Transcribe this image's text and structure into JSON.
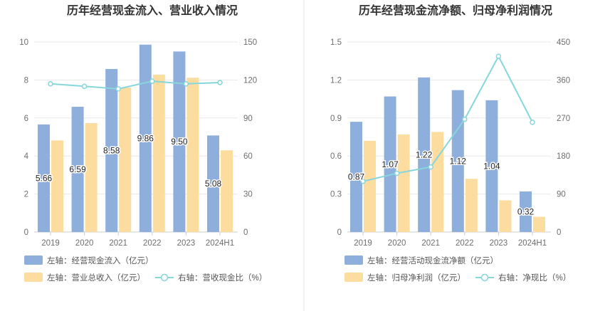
{
  "colors": {
    "bar_primary": "#8eaedc",
    "bar_secondary": "#fddca0",
    "line": "#86d6dc",
    "grid": "#e8e8e8",
    "axis": "#cccccc"
  },
  "chart_data": [
    {
      "type": "bar",
      "title": "历年经营现金流入、营业收入情况",
      "categories": [
        "2019",
        "2020",
        "2021",
        "2022",
        "2023",
        "2024H1"
      ],
      "left_axis": {
        "ylim": [
          0,
          10
        ],
        "ticks": [
          "0",
          "2",
          "4",
          "6",
          "8",
          "10"
        ]
      },
      "right_axis": {
        "ylim": [
          0,
          150
        ],
        "ticks": [
          "0",
          "30",
          "60",
          "90",
          "120",
          "150"
        ]
      },
      "series": [
        {
          "name": "左轴：经营现金流入（亿元）",
          "type": "bar",
          "axis": "left",
          "color": "#8eaedc",
          "values": [
            5.66,
            6.59,
            8.58,
            9.86,
            9.5,
            5.08
          ],
          "labels": [
            "5.66",
            "6.59",
            "8.58",
            "9.86",
            "9.50",
            "5.08"
          ]
        },
        {
          "name": "左轴：营业总收入（亿元）",
          "type": "bar",
          "axis": "left",
          "color": "#fddca0",
          "values": [
            4.82,
            5.73,
            7.6,
            8.28,
            8.12,
            4.3
          ]
        },
        {
          "name": "右轴：营收现金比（%）",
          "type": "line",
          "axis": "right",
          "color": "#86d6dc",
          "values": [
            117,
            115,
            113,
            119,
            117,
            118
          ]
        }
      ]
    },
    {
      "type": "bar",
      "title": "历年经营现金流净额、归母净利润情况",
      "categories": [
        "2019",
        "2020",
        "2021",
        "2022",
        "2023",
        "2024H1"
      ],
      "left_axis": {
        "ylim": [
          0,
          1.5
        ],
        "ticks": [
          "0",
          "0.3",
          "0.6",
          "0.9",
          "1.2",
          "1.5"
        ]
      },
      "right_axis": {
        "ylim": [
          0,
          450
        ],
        "ticks": [
          "0",
          "90",
          "180",
          "270",
          "360",
          "450"
        ]
      },
      "series": [
        {
          "name": "左轴：经营活动现金流净额（亿元）",
          "type": "bar",
          "axis": "left",
          "color": "#8eaedc",
          "values": [
            0.87,
            1.07,
            1.22,
            1.12,
            1.04,
            0.32
          ],
          "labels": [
            "0.87",
            "1.07",
            "1.22",
            "1.12",
            "1.04",
            "0.32"
          ]
        },
        {
          "name": "左轴：归母净利润（亿元）",
          "type": "bar",
          "axis": "left",
          "color": "#fddca0",
          "values": [
            0.72,
            0.77,
            0.79,
            0.42,
            0.25,
            0.12
          ]
        },
        {
          "name": "右轴：净现比（%）",
          "type": "line",
          "axis": "right",
          "color": "#86d6dc",
          "values": [
            120,
            139,
            154,
            267,
            416,
            260
          ]
        }
      ]
    }
  ]
}
